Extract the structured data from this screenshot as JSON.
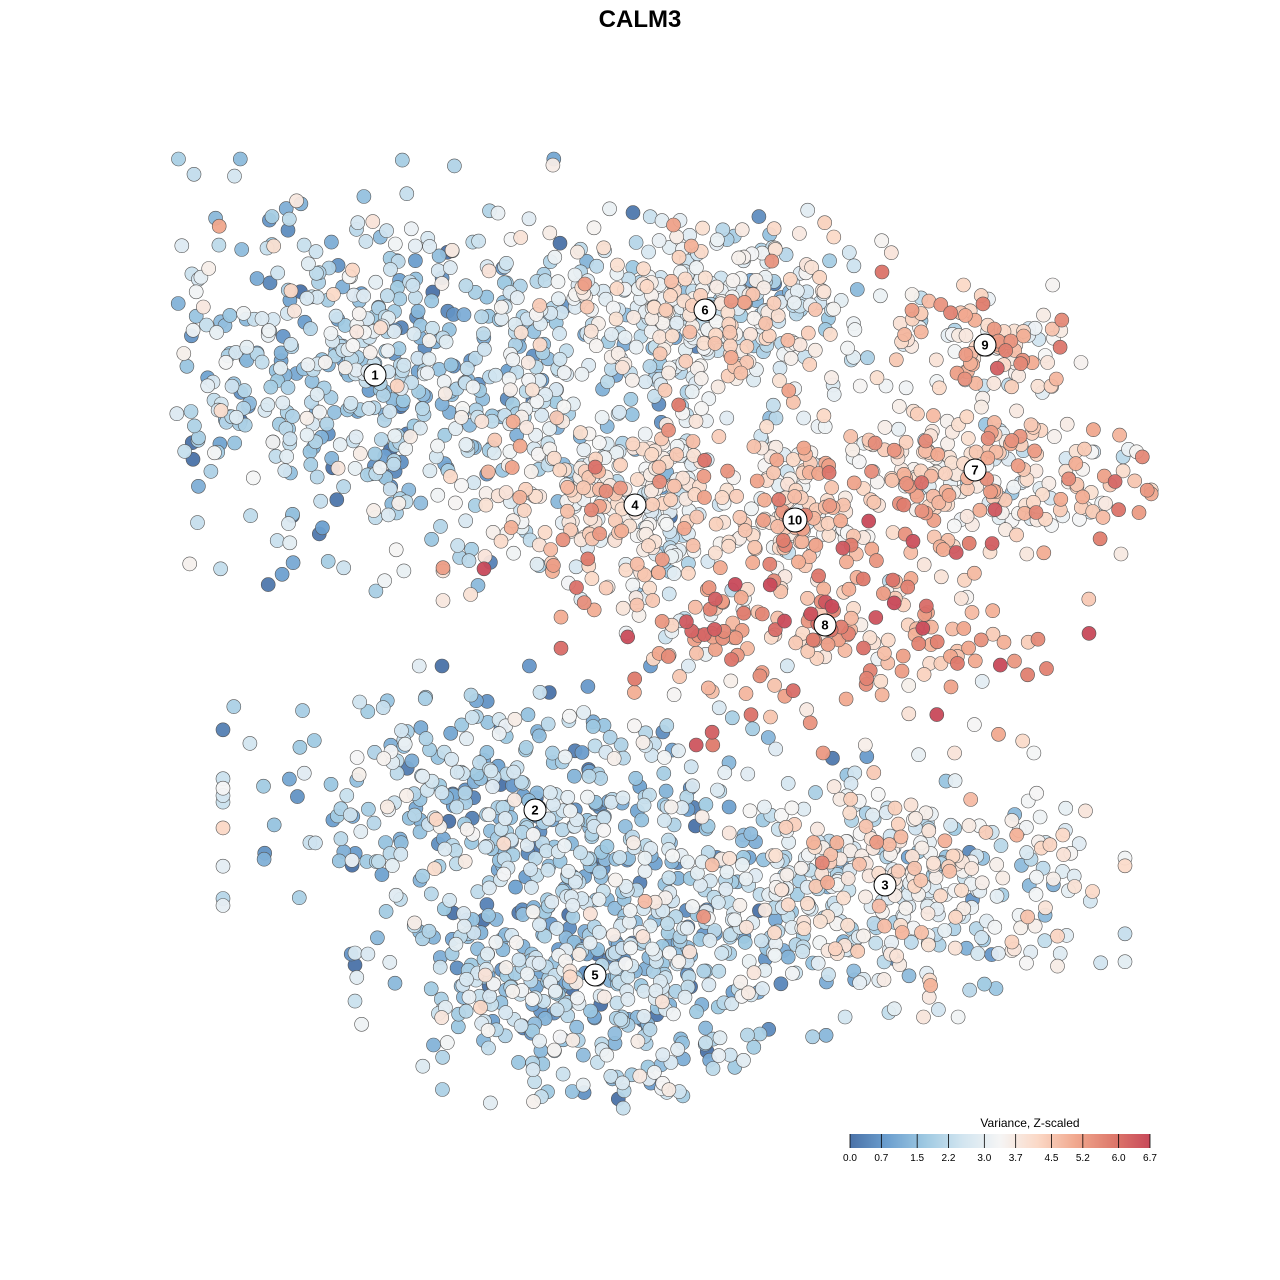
{
  "chart_data": {
    "type": "scatter",
    "title": "CALM3",
    "xlabel": "",
    "ylabel": "",
    "axes_visible": false,
    "grid": false,
    "xlim": [
      -50,
      50
    ],
    "ylim": [
      -50,
      50
    ],
    "color_scale": {
      "title": "Variance, Z-scaled",
      "min": 0.0,
      "max": 6.7,
      "ticks": [
        0.0,
        0.7,
        1.5,
        2.2,
        3.0,
        3.7,
        4.5,
        5.2,
        6.0,
        6.7
      ],
      "tick_labels": [
        "0.0",
        "0.7",
        "1.5",
        "2.2",
        "3.0",
        "3.7",
        "4.5",
        "5.2",
        "6.0",
        "6.7"
      ],
      "colors": [
        "#4a72a8",
        "#6c9fcf",
        "#9ec9e2",
        "#d2e5f0",
        "#f5f5f5",
        "#fbd9c7",
        "#f1a98f",
        "#de7a6c",
        "#c8495a"
      ],
      "placement": "bottom-right"
    },
    "clusters": [
      {
        "label": "1",
        "x": -29,
        "y": 26.5,
        "sx": 13,
        "sy": 9,
        "mean": 2.0,
        "n": 620
      },
      {
        "label": "6",
        "x": 4,
        "y": 33,
        "sx": 9,
        "sy": 4.5,
        "mean": 3.1,
        "n": 420
      },
      {
        "label": "9",
        "x": 32,
        "y": 29.5,
        "sx": 4.5,
        "sy": 2.5,
        "mean": 4.2,
        "n": 90
      },
      {
        "label": "7",
        "x": 31,
        "y": 17,
        "sx": 10,
        "sy": 3.5,
        "mean": 4.0,
        "n": 260
      },
      {
        "label": "4",
        "x": -3,
        "y": 13.5,
        "sx": 8,
        "sy": 5.5,
        "mean": 3.5,
        "n": 330
      },
      {
        "label": "10",
        "x": 13,
        "y": 12,
        "sx": 3,
        "sy": 3,
        "mean": 4.0,
        "n": 80
      },
      {
        "label": "8",
        "x": 16,
        "y": 1.5,
        "sx": 11,
        "sy": 5,
        "mean": 5.0,
        "n": 230
      },
      {
        "label": "2",
        "x": -13,
        "y": -17,
        "sx": 13,
        "sy": 6,
        "mean": 1.8,
        "n": 420
      },
      {
        "label": "3",
        "x": 22,
        "y": -24.5,
        "sx": 10,
        "sy": 5.5,
        "mean": 3.0,
        "n": 420
      },
      {
        "label": "5",
        "x": -7,
        "y": -33.5,
        "sx": 10,
        "sy": 7,
        "mean": 2.1,
        "n": 480
      }
    ]
  }
}
